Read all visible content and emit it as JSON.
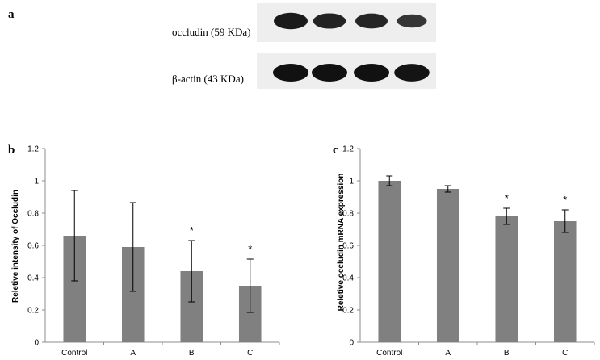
{
  "panel_a": {
    "label": "a",
    "blots": [
      {
        "name": "occludin (59 KDa)",
        "band_intensities": [
          0.9,
          0.82,
          0.8,
          0.65
        ]
      },
      {
        "name": "β-actin (43 KDa)",
        "band_intensities": [
          1.0,
          1.0,
          1.0,
          0.98
        ]
      }
    ]
  },
  "colors": {
    "bar": "#808080",
    "axis": "#8c8c8c",
    "text": "#000000",
    "blot_bg": "#eeeeee",
    "band": "#111111"
  },
  "chart_data": [
    {
      "panel_label": "b",
      "type": "bar",
      "categories": [
        "Control",
        "A",
        "B",
        "C"
      ],
      "values": [
        0.66,
        0.59,
        0.44,
        0.35
      ],
      "errors": [
        0.28,
        0.275,
        0.19,
        0.165
      ],
      "significance": [
        "",
        "",
        "*",
        "*"
      ],
      "title": "",
      "xlabel": "",
      "ylabel": "Reletive intensity of Occludin",
      "ylim": [
        0,
        1.2
      ],
      "yticks": [
        "0",
        "0.2",
        "0.4",
        "0.6",
        "0.8",
        "1",
        "1.2"
      ],
      "grid": false
    },
    {
      "panel_label": "c",
      "type": "bar",
      "categories": [
        "Control",
        "A",
        "B",
        "C"
      ],
      "values": [
        1.0,
        0.95,
        0.78,
        0.75
      ],
      "errors": [
        0.03,
        0.02,
        0.05,
        0.07
      ],
      "significance": [
        "",
        "",
        "*",
        "*"
      ],
      "title": "",
      "xlabel": "",
      "ylabel": "Reletive occludin mRNA expression",
      "ylim": [
        0,
        1.2
      ],
      "yticks": [
        "0",
        "0.2",
        "0.4",
        "0.6",
        "0.8",
        "1",
        "1.2"
      ],
      "grid": false
    }
  ]
}
